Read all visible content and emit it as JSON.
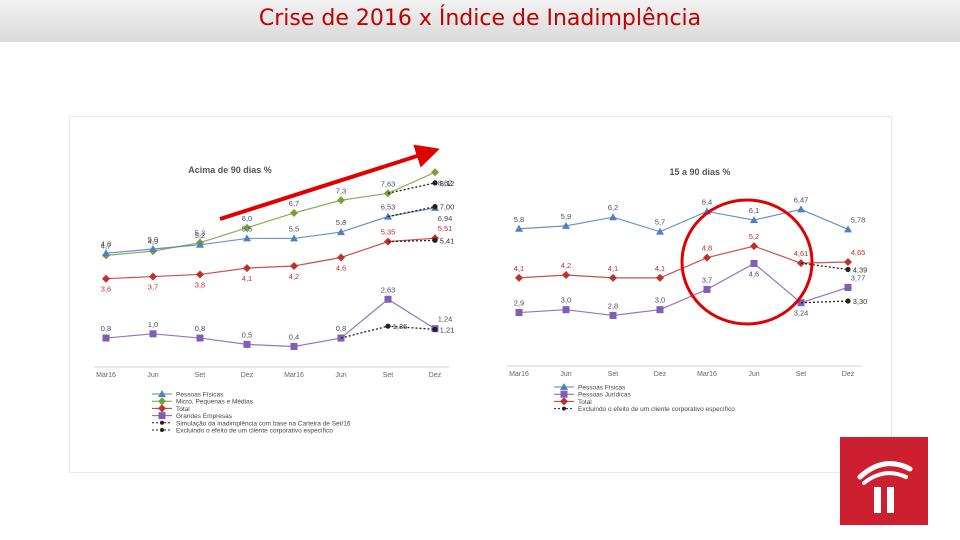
{
  "slide": {
    "title": "Crise de 2016 x Índice de Inadimplência"
  },
  "colors": {
    "accent": "#c00000",
    "logo": "#cc1f2f",
    "physical": "#4f81bd",
    "smes": "#77a03c",
    "total": "#c0312b",
    "large": "#7f5fb1",
    "legal": "#7f5fb1"
  },
  "chart_data": [
    {
      "type": "line",
      "title": "Acima de 90 dias %",
      "categories": [
        "Mar16",
        "Jun",
        "Set",
        "Dez",
        "Mar16",
        "Jun",
        "Set",
        "Dez"
      ],
      "series": [
        {
          "name": "Micro, Pequenas e Médias",
          "color": "#77a03c",
          "marker": "diamond",
          "values": [
            4.7,
            4.9,
            5.3,
            6.0,
            6.7,
            7.3,
            7.63,
            8.62
          ],
          "labels": [
            "4,7",
            "4,9",
            "5,3",
            "6,0",
            "6,7",
            "7,3",
            "7,63",
            "8,62"
          ]
        },
        {
          "name": "Pessoas Físicas",
          "color": "#4f81bd",
          "marker": "triangle",
          "values": [
            4.8,
            5.0,
            5.2,
            5.5,
            5.5,
            5.8,
            6.53,
            6.94
          ],
          "labels": [
            "4,8",
            "5,0",
            "5,2",
            "5,5",
            "5,5",
            "5,8",
            "6,53",
            "6,94"
          ]
        },
        {
          "name": "Total",
          "color": "#c0312b",
          "marker": "diamond",
          "values": [
            3.6,
            3.7,
            3.8,
            4.1,
            4.2,
            4.6,
            5.35,
            5.51
          ],
          "labels": [
            "3,6",
            "3,7",
            "3,8",
            "4,1",
            "4,2",
            "4,6",
            "5,35",
            "5,51"
          ]
        },
        {
          "name": "Grandes Empresas",
          "color": "#7f5fb1",
          "marker": "square",
          "values": [
            0.8,
            1.0,
            0.8,
            0.5,
            0.4,
            0.8,
            2.63,
            1.24
          ],
          "labels": [
            "0,8",
            "1,0",
            "0,8",
            "0,5",
            "0,4",
            "0,8",
            "2,63",
            "1,24"
          ]
        }
      ],
      "extras": [
        {
          "name": "Simulação da inadimplência com base na Carteira de Set/16",
          "from_index": 6,
          "values": [
            8.12
          ],
          "labels": [
            "8,12"
          ],
          "style": "dotted"
        },
        {
          "name": "Simulação da inadimplência com base na Carteira de Set/16",
          "from_index": 6,
          "values": [
            7.0
          ],
          "labels": [
            "7,00"
          ],
          "style": "dotted"
        },
        {
          "name": "Excluindo o efeito de um cliente corporativo específico",
          "from_index": 6,
          "values": [
            5.41
          ],
          "labels": [
            "5,41"
          ],
          "style": "dotted"
        },
        {
          "name": "Excluindo o efeito de um cliente corporativo específico",
          "from_index": 5,
          "points": [
            [
              6,
              1.36
            ],
            [
              7,
              1.21
            ]
          ],
          "labels": [
            "1,36",
            "1,21"
          ],
          "style": "dotted"
        }
      ],
      "legend": [
        "Pessoas Físicas",
        "Micro, Pequenas e Médias",
        "Total",
        "Grandes Empresas",
        "Simulação da inadimplência com base na Carteira de Set/16",
        "Excluindo o efeito de um cliente corporativo específico"
      ],
      "annotation": "red trend arrow"
    },
    {
      "type": "line",
      "title": "15 a 90 dias %",
      "categories": [
        "Mar16",
        "Jun",
        "Set",
        "Dez",
        "Mar16",
        "Jun",
        "Set",
        "Dez"
      ],
      "series": [
        {
          "name": "Pessoas Físicas",
          "color": "#4f81bd",
          "marker": "triangle",
          "values": [
            5.8,
            5.9,
            6.2,
            5.7,
            6.4,
            6.1,
            6.47,
            5.78
          ],
          "labels": [
            "5,8",
            "5,9",
            "6,2",
            "5,7",
            "6,4",
            "6,1",
            "6,47",
            "5,78"
          ]
        },
        {
          "name": "Total",
          "color": "#c0312b",
          "marker": "diamond",
          "values": [
            4.1,
            4.2,
            4.1,
            4.1,
            4.8,
            5.2,
            4.61,
            4.65
          ],
          "labels": [
            "4,1",
            "4,2",
            "4,1",
            "4,1",
            "4,8",
            "5,2",
            "4,61",
            "4,65"
          ]
        },
        {
          "name": "Pessoas Jurídicas",
          "color": "#7f5fb1",
          "marker": "square",
          "values": [
            2.9,
            3.0,
            2.8,
            3.0,
            3.7,
            4.6,
            3.24,
            3.77
          ],
          "labels": [
            "2,9",
            "3,0",
            "2,8",
            "3,0",
            "3,7",
            "4,6",
            "3,24",
            "3,77"
          ]
        }
      ],
      "extras": [
        {
          "name": "Excluindo o efeito de um cliente corporativo específico",
          "from_index": 6,
          "values": [
            4.39
          ],
          "labels": [
            "4,39"
          ],
          "style": "dotted"
        },
        {
          "name": "Excluindo o efeito de um cliente corporativo específico",
          "from_index": 6,
          "values": [
            3.3
          ],
          "labels": [
            "3,30"
          ],
          "style": "dotted"
        }
      ],
      "legend": [
        "Pessoas Físicas",
        "Pessoas Jurídicas",
        "Total",
        "Excluindo o efeito de um cliente corporativo específico"
      ],
      "annotation": "red circle around Mar16–Jun values"
    }
  ]
}
